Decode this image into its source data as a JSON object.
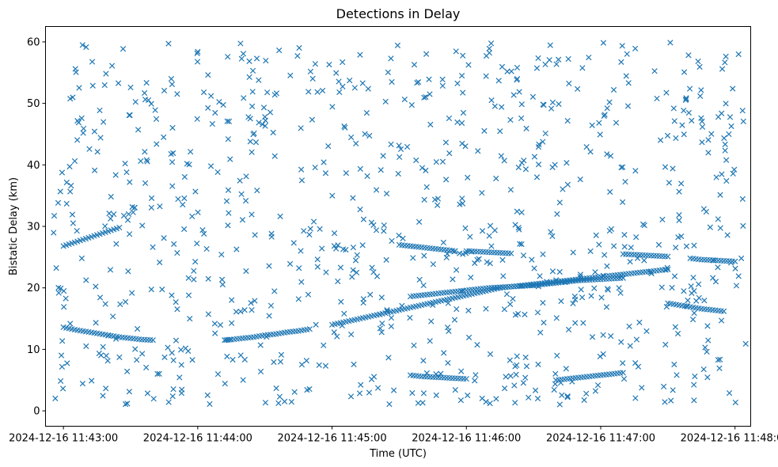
{
  "chart_data": {
    "type": "scatter",
    "title": "Detections in Delay",
    "xlabel": "Time (UTC)",
    "ylabel": "Bistatic Delay (km)",
    "x_axis_type": "datetime",
    "xlim": [
      "2024-12-16 11:42:52",
      "2024-12-16 11:48:07"
    ],
    "ylim": [
      -2.5,
      62.5
    ],
    "x_ticks": [
      "2024-12-16 11:43:00",
      "2024-12-16 11:44:00",
      "2024-12-16 11:45:00",
      "2024-12-16 11:46:00",
      "2024-12-16 11:47:00",
      "2024-12-16 11:48:00"
    ],
    "y_ticks": [
      0,
      10,
      20,
      30,
      40,
      50,
      60
    ],
    "grid": false,
    "marker": "x",
    "color": "#1f77b4",
    "series": [
      {
        "x_start": "2024-12-16 11:43:00",
        "x_end": "2024-12-16 11:48:00",
        "tracks": [
          {
            "t": [
              0,
              5,
              10,
              15,
              20,
              25,
              30,
              35,
              40,
              45,
              50,
              55,
              60,
              65,
              70,
              75,
              80,
              85,
              90,
              95,
              100,
              105,
              110,
              115,
              120
            ],
            "y": [
              13.6,
              13.2,
              12.9,
              12.6,
              12.3,
              12.0,
              11.8,
              11.6,
              11.5,
              null,
              null,
              null,
              null,
              null,
              null,
              null,
              null,
              null,
              null,
              null,
              null,
              null,
              null,
              null,
              null
            ]
          },
          {
            "t": [
              72,
              75,
              80,
              85,
              90,
              95,
              100,
              105,
              110,
              115,
              120
            ],
            "y": [
              11.5,
              11.6,
              11.8,
              12.0,
              12.3,
              12.5,
              12.8,
              13.0,
              13.3,
              null,
              null
            ]
          },
          {
            "t": [
              120,
              125,
              130,
              135,
              140,
              145,
              150,
              155,
              160,
              165,
              170,
              175,
              180,
              185,
              190,
              195,
              200,
              205,
              210,
              215,
              220,
              225,
              230,
              235,
              240,
              245,
              250,
              255,
              260,
              265,
              270,
              275,
              280,
              285,
              290
            ],
            "y": [
              14.0,
              14.4,
              14.8,
              15.2,
              15.6,
              16.0,
              16.4,
              16.8,
              17.2,
              17.6,
              18.0,
              18.4,
              18.8,
              19.2,
              19.6,
              20.0,
              20.2,
              20.4,
              20.6,
              20.8,
              21.0,
              21.2,
              21.4,
              21.6,
              21.8,
              22.0,
              22.2,
              22.4,
              22.6,
              22.8,
              23.0,
              null,
              null,
              null,
              null
            ]
          },
          {
            "t": [
              0,
              5,
              10,
              15,
              20,
              25
            ],
            "y": [
              26.8,
              27.4,
              28.0,
              28.6,
              29.2,
              29.8
            ]
          },
          {
            "t": [
              155,
              160,
              165,
              170,
              175,
              180,
              185,
              190,
              195,
              200,
              205,
              210,
              215,
              220,
              225,
              230,
              235,
              240,
              245,
              250
            ],
            "y": [
              18.6,
              18.8,
              19.0,
              19.2,
              19.4,
              19.6,
              19.8,
              20.0,
              20.1,
              20.2,
              20.3,
              20.4,
              20.6,
              20.8,
              21.0,
              21.2,
              21.3,
              21.4,
              21.5,
              21.6
            ]
          },
          {
            "t": [
              150,
              155,
              160,
              165,
              170,
              175
            ],
            "y": [
              27.0,
              26.8,
              26.6,
              26.4,
              26.2,
              26.0
            ]
          },
          {
            "t": [
              180,
              185,
              190,
              195,
              200
            ],
            "y": [
              26.0,
              25.9,
              25.8,
              25.7,
              25.6
            ]
          },
          {
            "t": [
              250,
              255,
              260,
              265,
              270
            ],
            "y": [
              25.5,
              25.4,
              25.3,
              25.2,
              25.1
            ]
          },
          {
            "t": [
              280,
              285,
              290,
              295,
              300
            ],
            "y": [
              24.8,
              24.6,
              24.5,
              24.4,
              24.3
            ]
          },
          {
            "t": [
              155,
              160,
              165,
              170,
              175,
              180
            ],
            "y": [
              5.8,
              5.6,
              5.5,
              5.4,
              5.3,
              5.2
            ]
          },
          {
            "t": [
              220,
              225,
              230,
              235,
              240,
              245,
              250
            ],
            "y": [
              5.0,
              5.2,
              5.4,
              5.6,
              5.8,
              6.0,
              6.2
            ]
          },
          {
            "t": [
              270,
              275,
              280,
              285,
              290,
              295
            ],
            "y": [
              17.5,
              17.2,
              16.9,
              16.6,
              16.4,
              16.2
            ]
          }
        ]
      }
    ]
  }
}
